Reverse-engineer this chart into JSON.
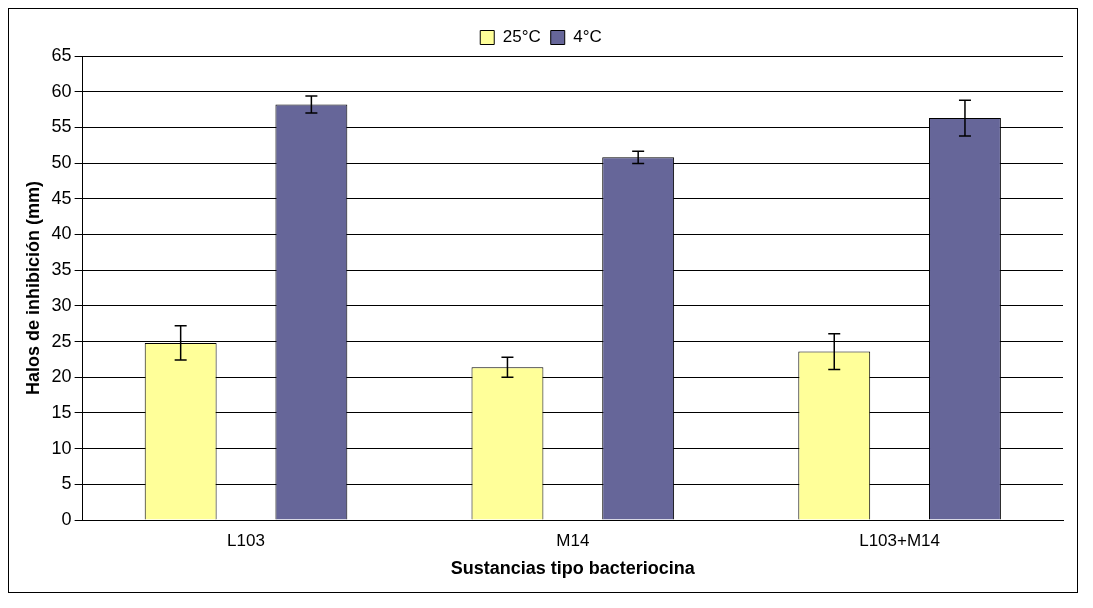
{
  "chart_data": {
    "type": "bar",
    "xlabel": "Sustancias tipo bacteriocina",
    "ylabel": "Halos de inhibición (mm)",
    "categories": [
      "L103",
      "M14",
      "L103+M14"
    ],
    "series": [
      {
        "name": "25°C",
        "color": "#ffff99",
        "values": [
          24.8,
          21.4,
          23.6
        ],
        "errors": [
          2.4,
          1.4,
          2.5
        ]
      },
      {
        "name": "4°C",
        "color": "#666699",
        "values": [
          58.2,
          50.8,
          56.3
        ],
        "errors": [
          1.2,
          0.85,
          2.5
        ]
      }
    ],
    "ylim": [
      0,
      65
    ],
    "yticks": [
      0,
      5,
      10,
      15,
      20,
      25,
      30,
      35,
      40,
      45,
      50,
      55,
      60,
      65
    ],
    "grid": "y",
    "legend": "top"
  }
}
